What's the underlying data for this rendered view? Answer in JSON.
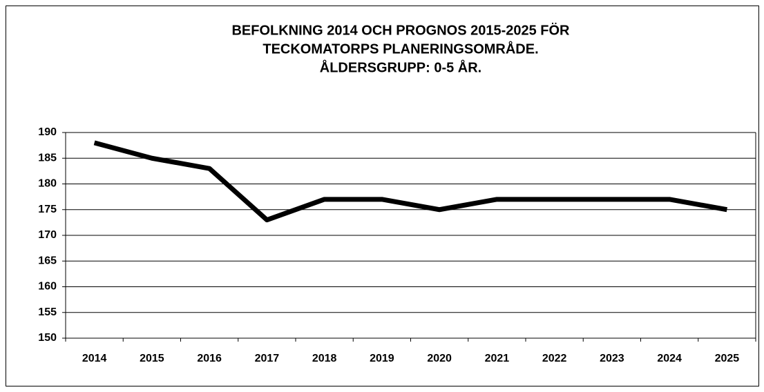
{
  "chart_data": {
    "type": "line",
    "title": [
      "BEFOLKNING 2014 OCH PROGNOS 2015-2025 FÖR",
      "TECKOMATORPS PLANERINGSOMRÅDE.",
      "ÅLDERSGRUPP: 0-5 ÅR."
    ],
    "categories": [
      "2014",
      "2015",
      "2016",
      "2017",
      "2018",
      "2019",
      "2020",
      "2021",
      "2022",
      "2023",
      "2024",
      "2025"
    ],
    "values": [
      188,
      185,
      183,
      173,
      177,
      177,
      175,
      177,
      177,
      177,
      177,
      175
    ],
    "color": "#000000",
    "ylim": [
      150,
      190
    ],
    "yticks": [
      150,
      155,
      160,
      165,
      170,
      175,
      180,
      185,
      190
    ],
    "grid": true
  }
}
